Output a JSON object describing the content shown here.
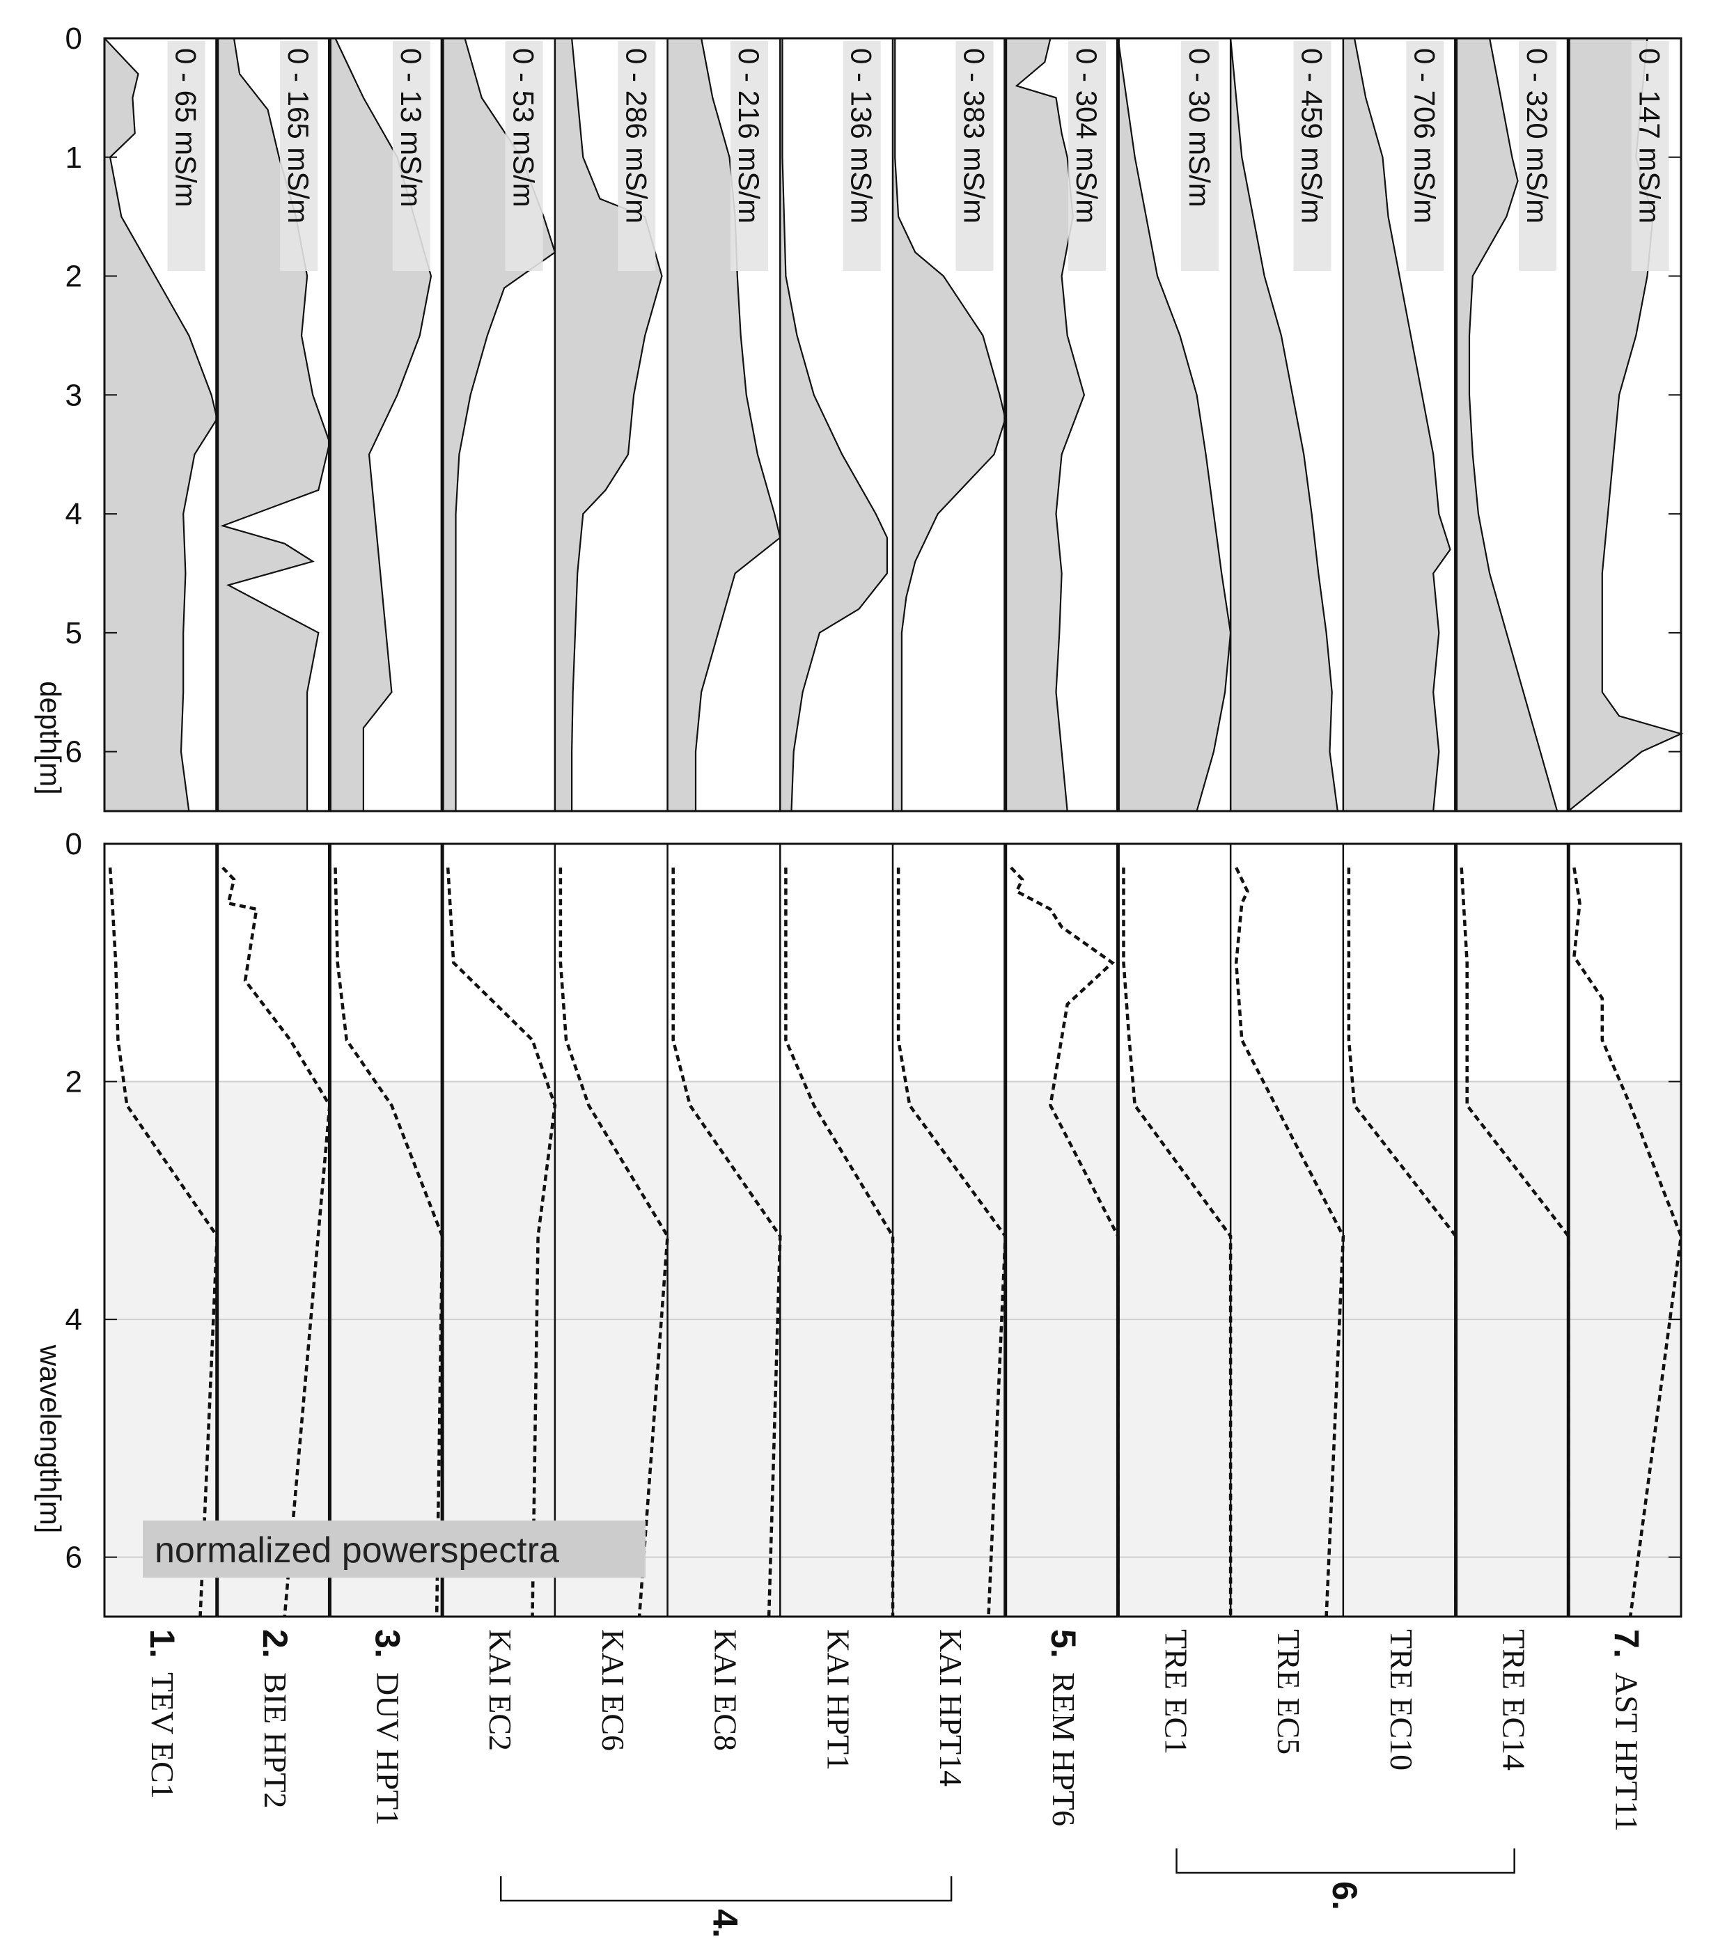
{
  "chart_data": [
    {
      "type": "area",
      "ylabel": "depth[m]",
      "ylim": [
        0,
        6.5
      ],
      "yticks": [
        "0",
        "1",
        "2",
        "3",
        "4",
        "5",
        "6"
      ],
      "orientation": "vertical-profiles",
      "panels": [
        {
          "name": "TEV EC1",
          "range": "0 - 65 mS/m",
          "divider": "thick",
          "depth": [
            0,
            0.3,
            0.5,
            0.8,
            1.0,
            1.5,
            2.0,
            2.5,
            3.0,
            3.2,
            3.5,
            4.0,
            4.5,
            5.0,
            5.5,
            6.0,
            6.5
          ],
          "values": [
            0,
            0.3,
            0.25,
            0.27,
            0.05,
            0.15,
            0.45,
            0.75,
            0.95,
            1.0,
            0.8,
            0.7,
            0.72,
            0.7,
            0.7,
            0.68,
            0.75
          ]
        },
        {
          "name": "BIE HPT2",
          "range": "0 - 165 mS/m",
          "divider": "thick",
          "depth": [
            0,
            0.3,
            0.6,
            1.0,
            1.5,
            2.0,
            2.5,
            3.0,
            3.4,
            3.8,
            4.1,
            4.25,
            4.4,
            4.6,
            4.8,
            5.0,
            5.5,
            6.0,
            6.5
          ],
          "values": [
            0.15,
            0.2,
            0.45,
            0.55,
            0.7,
            0.8,
            0.75,
            0.85,
            1.0,
            0.9,
            0.05,
            0.6,
            0.85,
            0.1,
            0.5,
            0.9,
            0.8,
            0.8,
            0.8
          ]
        },
        {
          "name": "DUV HPT1",
          "range": "0 - 13 mS/m",
          "divider": "thick",
          "depth": [
            0,
            0.5,
            1.0,
            1.5,
            2.0,
            2.5,
            3.0,
            3.5,
            4.0,
            4.5,
            5.0,
            5.5,
            5.8,
            6.5
          ],
          "values": [
            0.05,
            0.3,
            0.6,
            0.75,
            0.9,
            0.8,
            0.6,
            0.35,
            0.4,
            0.45,
            0.5,
            0.55,
            0.3,
            0.3
          ]
        },
        {
          "name": "KAI EC2",
          "range": "0 - 53 mS/m",
          "divider": "thick",
          "depth": [
            0,
            0.5,
            1.0,
            1.5,
            1.8,
            2.1,
            2.5,
            3.0,
            3.5,
            4.0,
            4.5,
            5.0,
            5.5,
            6.0,
            6.5
          ],
          "values": [
            0.2,
            0.35,
            0.7,
            0.9,
            1.0,
            0.55,
            0.4,
            0.25,
            0.15,
            0.12,
            0.12,
            0.12,
            0.12,
            0.12,
            0.12
          ]
        },
        {
          "name": "KAI EC6",
          "range": "0 - 286 mS/m",
          "divider": "thin",
          "depth": [
            0,
            0.5,
            1.0,
            1.35,
            1.5,
            2.0,
            2.5,
            3.0,
            3.5,
            3.8,
            4.0,
            4.5,
            5.0,
            5.5,
            6.0,
            6.5
          ],
          "values": [
            0.15,
            0.2,
            0.25,
            0.4,
            0.8,
            0.95,
            0.8,
            0.7,
            0.65,
            0.45,
            0.25,
            0.2,
            0.18,
            0.16,
            0.15,
            0.15
          ]
        },
        {
          "name": "KAI EC8",
          "range": "0 - 216 mS/m",
          "divider": "thin",
          "depth": [
            0,
            0.5,
            1.0,
            1.5,
            2.0,
            2.5,
            3.0,
            3.5,
            4.0,
            4.2,
            4.5,
            5.0,
            5.5,
            6.0,
            6.5
          ],
          "values": [
            0.3,
            0.4,
            0.55,
            0.6,
            0.62,
            0.65,
            0.7,
            0.8,
            0.95,
            1.0,
            0.6,
            0.45,
            0.3,
            0.25,
            0.25
          ]
        },
        {
          "name": "KAI HPT1",
          "range": "0 - 136 mS/m",
          "divider": "thin",
          "depth": [
            0,
            1.0,
            2.0,
            2.5,
            3.0,
            3.5,
            4.0,
            4.2,
            4.5,
            4.8,
            5.0,
            5.5,
            6.0,
            6.5
          ],
          "values": [
            0.02,
            0.02,
            0.05,
            0.15,
            0.3,
            0.55,
            0.85,
            0.95,
            0.95,
            0.7,
            0.35,
            0.2,
            0.12,
            0.1
          ]
        },
        {
          "name": "KAI HPT14",
          "range": "0 - 383 mS/m",
          "divider": "thin",
          "depth": [
            0,
            1.0,
            1.5,
            1.8,
            2.0,
            2.5,
            3.0,
            3.2,
            3.5,
            4.0,
            4.4,
            4.7,
            5.0,
            5.5,
            6.0,
            6.5
          ],
          "values": [
            0.02,
            0.02,
            0.05,
            0.2,
            0.45,
            0.8,
            0.95,
            1.0,
            0.9,
            0.4,
            0.2,
            0.12,
            0.08,
            0.08,
            0.08,
            0.08
          ]
        },
        {
          "name": "REM HPT6",
          "range": "0 - 304 mS/m",
          "divider": "thick",
          "depth": [
            0,
            0.2,
            0.4,
            0.5,
            0.8,
            1.0,
            1.5,
            2.0,
            2.5,
            3.0,
            3.5,
            4.0,
            4.5,
            5.0,
            5.5,
            6.0,
            6.5
          ],
          "values": [
            0.4,
            0.35,
            0.1,
            0.45,
            0.5,
            0.55,
            0.6,
            0.5,
            0.55,
            0.7,
            0.5,
            0.45,
            0.5,
            0.48,
            0.45,
            0.5,
            0.55
          ]
        },
        {
          "name": "TRE EC1",
          "range": "0 - 30 mS/m",
          "divider": "thick",
          "depth": [
            0,
            1.0,
            2.0,
            2.5,
            3.0,
            3.5,
            4.0,
            4.5,
            5.0,
            5.5,
            6.0,
            6.5
          ],
          "values": [
            0.0,
            0.15,
            0.35,
            0.55,
            0.7,
            0.78,
            0.85,
            0.92,
            1.0,
            0.95,
            0.85,
            0.7
          ]
        },
        {
          "name": "TRE EC5",
          "range": "0 - 459 mS/m",
          "divider": "thin",
          "depth": [
            0,
            1.0,
            2.0,
            2.5,
            3.0,
            3.5,
            4.0,
            4.5,
            5.0,
            5.5,
            6.0,
            6.5
          ],
          "values": [
            0.0,
            0.1,
            0.3,
            0.45,
            0.55,
            0.65,
            0.72,
            0.78,
            0.85,
            0.9,
            0.88,
            0.95
          ]
        },
        {
          "name": "TRE EC10",
          "range": "0 - 706 mS/m",
          "divider": "thin",
          "depth": [
            0,
            0.5,
            1.0,
            1.5,
            2.0,
            2.5,
            3.0,
            3.5,
            4.0,
            4.3,
            4.5,
            5.0,
            5.5,
            6.0,
            6.5
          ],
          "values": [
            0.1,
            0.2,
            0.35,
            0.4,
            0.5,
            0.6,
            0.7,
            0.8,
            0.85,
            0.95,
            0.8,
            0.85,
            0.8,
            0.85,
            0.8
          ]
        },
        {
          "name": "TRE EC14",
          "range": "0 - 320 mS/m",
          "divider": "thick",
          "depth": [
            0,
            0.5,
            1.0,
            1.2,
            1.5,
            2.0,
            2.5,
            3.0,
            3.5,
            4.0,
            4.5,
            5.0,
            5.5,
            6.0,
            6.5
          ],
          "values": [
            0.3,
            0.4,
            0.5,
            0.55,
            0.45,
            0.15,
            0.12,
            0.12,
            0.15,
            0.2,
            0.3,
            0.45,
            0.6,
            0.75,
            0.9
          ]
        },
        {
          "name": "AST HPT11",
          "range": "0 - 147 mS/m",
          "divider": "thick",
          "depth": [
            0,
            0.5,
            1.0,
            1.5,
            2.0,
            2.5,
            3.0,
            3.5,
            4.0,
            4.5,
            5.0,
            5.5,
            5.7,
            5.85,
            6.0,
            6.5
          ],
          "values": [
            0.7,
            0.65,
            0.6,
            0.75,
            0.7,
            0.6,
            0.45,
            0.4,
            0.35,
            0.3,
            0.3,
            0.3,
            0.45,
            1.0,
            0.65,
            0.0
          ]
        }
      ]
    },
    {
      "type": "line",
      "ylabel": "wavelength[m]",
      "ylim": [
        0,
        6.5
      ],
      "yticks": [
        "0",
        "2",
        "4",
        "6"
      ],
      "shaded_region": [
        2.0,
        6.5
      ],
      "annotation": "normalized powerspectra",
      "panels": [
        {
          "name": "TEV EC1",
          "y": [
            0.2,
            0.5,
            1.0,
            1.65,
            2.2,
            3.3,
            6.5
          ],
          "x": [
            0.05,
            0.07,
            0.1,
            0.12,
            0.2,
            1.0,
            0.85
          ]
        },
        {
          "name": "BIE HPT2",
          "y": [
            0.2,
            0.3,
            0.5,
            0.55,
            0.85,
            1.15,
            1.65,
            2.2,
            6.5
          ],
          "x": [
            0.05,
            0.15,
            0.1,
            0.35,
            0.3,
            0.25,
            0.65,
            1.0,
            0.6
          ]
        },
        {
          "name": "DUV HPT1",
          "y": [
            0.2,
            1.0,
            1.65,
            2.2,
            3.3,
            6.5
          ],
          "x": [
            0.05,
            0.07,
            0.15,
            0.55,
            1.0,
            0.95
          ]
        },
        {
          "name": "KAI EC2",
          "y": [
            0.2,
            1.0,
            1.65,
            2.2,
            3.3,
            6.5
          ],
          "x": [
            0.05,
            0.1,
            0.8,
            1.0,
            0.85,
            0.8
          ]
        },
        {
          "name": "KAI EC6",
          "y": [
            0.2,
            1.0,
            1.65,
            2.2,
            3.3,
            6.5
          ],
          "x": [
            0.05,
            0.05,
            0.1,
            0.3,
            1.0,
            0.75
          ]
        },
        {
          "name": "KAI EC8",
          "y": [
            0.2,
            1.0,
            1.65,
            2.2,
            3.3,
            6.5
          ],
          "x": [
            0.05,
            0.05,
            0.05,
            0.2,
            1.0,
            0.9
          ]
        },
        {
          "name": "KAI HPT1",
          "y": [
            0.2,
            1.0,
            1.65,
            2.2,
            3.3,
            6.5
          ],
          "x": [
            0.05,
            0.05,
            0.05,
            0.3,
            1.0,
            1.0
          ]
        },
        {
          "name": "KAI HPT14",
          "y": [
            0.2,
            1.0,
            1.65,
            2.2,
            3.3,
            6.5
          ],
          "x": [
            0.05,
            0.05,
            0.05,
            0.15,
            1.0,
            0.85
          ]
        },
        {
          "name": "REM HPT6",
          "y": [
            0.2,
            0.3,
            0.4,
            0.55,
            0.7,
            1.0,
            1.35,
            2.2,
            3.3,
            6.5
          ],
          "x": [
            0.05,
            0.15,
            0.1,
            0.4,
            0.5,
            0.95,
            0.55,
            0.4,
            1.0,
            1.0
          ]
        },
        {
          "name": "TRE EC1",
          "y": [
            0.2,
            1.0,
            1.65,
            2.2,
            3.3,
            6.5
          ],
          "x": [
            0.05,
            0.05,
            0.1,
            0.15,
            1.0,
            1.0
          ]
        },
        {
          "name": "TRE EC5",
          "y": [
            0.2,
            0.4,
            0.5,
            1.0,
            1.65,
            2.2,
            3.3,
            6.5
          ],
          "x": [
            0.05,
            0.15,
            0.1,
            0.05,
            0.1,
            0.4,
            1.0,
            0.85
          ]
        },
        {
          "name": "TRE EC10",
          "y": [
            0.2,
            1.0,
            1.65,
            2.2,
            3.3,
            6.5
          ],
          "x": [
            0.05,
            0.05,
            0.05,
            0.1,
            1.0,
            1.0
          ]
        },
        {
          "name": "TRE EC14",
          "y": [
            0.2,
            1.0,
            1.5,
            2.2,
            3.3,
            6.5
          ],
          "x": [
            0.05,
            0.1,
            0.1,
            0.1,
            1.0,
            1.0
          ]
        },
        {
          "name": "AST HPT11",
          "y": [
            0.2,
            0.5,
            0.95,
            1.3,
            1.65,
            2.2,
            3.3,
            6.5
          ],
          "x": [
            0.05,
            0.1,
            0.05,
            0.3,
            0.3,
            0.55,
            1.0,
            0.55
          ]
        }
      ]
    }
  ],
  "site_labels": [
    {
      "num": "1.",
      "name": "TEV EC1"
    },
    {
      "num": "2.",
      "name": "BIE HPT2"
    },
    {
      "num": "3.",
      "name": "DUV HPT1"
    },
    {
      "num": "",
      "name": "KAI EC2"
    },
    {
      "num": "",
      "name": "KAI EC6"
    },
    {
      "num": "",
      "name": "KAI EC8"
    },
    {
      "num": "",
      "name": "KAI HPT1"
    },
    {
      "num": "",
      "name": "KAI HPT14"
    },
    {
      "num": "5.",
      "name": "REM HPT6"
    },
    {
      "num": "",
      "name": "TRE EC1"
    },
    {
      "num": "",
      "name": "TRE EC5"
    },
    {
      "num": "",
      "name": "TRE EC10"
    },
    {
      "num": "",
      "name": "TRE EC14"
    },
    {
      "num": "7.",
      "name": "AST HPT11"
    }
  ],
  "group_brackets": [
    {
      "label": "4.",
      "from": 3,
      "to": 7
    },
    {
      "label": "6.",
      "from": 9,
      "to": 12
    }
  ],
  "colors": {
    "fill": "#d3d3d3",
    "shade": "#f2f2f2",
    "label_box": "#e4e4e4",
    "note_box": "#cccccc",
    "line": "#111111"
  }
}
